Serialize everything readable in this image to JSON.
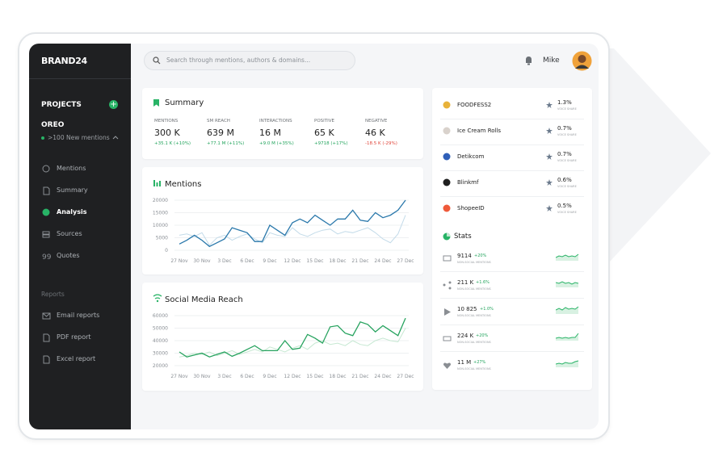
{
  "sidebar": {
    "brand": "BRAND24",
    "section": "PROJECTS",
    "project": "OREO",
    "project_note": ">100 New mentions",
    "menu": [
      "Mentions",
      "Summary",
      "Analysis",
      "Sources",
      "Quotes"
    ],
    "reports_heading": "Reports",
    "reports": [
      "Email reports",
      "PDF report",
      "Excel report"
    ]
  },
  "search_placeholder": "Search through mentions, authors & domains...",
  "user": "Mike",
  "summary": {
    "title": "Summary",
    "metrics": [
      {
        "label": "MENTIONS",
        "value": "300 K",
        "change": "+35.1 K (+10%)",
        "color": "#23a45d"
      },
      {
        "label": "SM REACH",
        "value": "639 M",
        "change": "+77.1 M (+11%)",
        "color": "#23a45d"
      },
      {
        "label": "INTERACTIONS",
        "value": "16 M",
        "change": "+9.0 M (+35%)",
        "color": "#23a45d"
      },
      {
        "label": "POSITIVE",
        "value": "65 K",
        "change": "+9718 (+17%)",
        "color": "#23a45d"
      },
      {
        "label": "NEGATIVE",
        "value": "46 K",
        "change": "-18.5 K (-29%)",
        "color": "#e0453a"
      }
    ]
  },
  "chart_data": [
    {
      "type": "line",
      "title": "Mentions",
      "categories": [
        "27 Nov",
        null,
        null,
        "30 Nov",
        null,
        null,
        "3 Dec",
        null,
        null,
        "6 Dec",
        null,
        null,
        "9 Dec",
        null,
        null,
        "12 Dec",
        null,
        null,
        "15 Dec",
        null,
        null,
        "18 Dec",
        null,
        null,
        "21 Dec",
        null,
        null,
        "24 Dec",
        null,
        null,
        "27 Dec"
      ],
      "series": [
        {
          "color": "#c3dbe9",
          "values": [
            6000,
            6500,
            5500,
            7000,
            2000,
            5000,
            6000,
            4000,
            5500,
            6500,
            4500,
            3000,
            7000,
            6000,
            5500,
            9000,
            6500,
            5500,
            7000,
            8000,
            8500,
            6500,
            7500,
            7000,
            8000,
            9000,
            7000,
            4500,
            3000,
            6500,
            14000
          ]
        },
        {
          "color": "#2a78ab",
          "values": [
            2500,
            4000,
            6000,
            4000,
            1500,
            3000,
            4500,
            9000,
            8000,
            7000,
            3500,
            3500,
            10000,
            8000,
            6000,
            11000,
            12500,
            11000,
            14000,
            12000,
            10000,
            12500,
            12500,
            16000,
            12000,
            11500,
            15000,
            13000,
            14000,
            16000,
            20000
          ]
        }
      ],
      "ylim": [
        0,
        20000
      ],
      "yticks": [
        0,
        5000,
        10000,
        15000,
        20000
      ],
      "grid": true
    },
    {
      "type": "line",
      "title": "Social Media Reach",
      "categories": [
        "27 Nov",
        null,
        null,
        "30 Nov",
        null,
        null,
        "3 Dec",
        null,
        null,
        "6 Dec",
        null,
        null,
        "9 Dec",
        null,
        null,
        "12 Dec",
        null,
        null,
        "15 Dec",
        null,
        null,
        "18 Dec",
        null,
        null,
        "21 Dec",
        null,
        null,
        "24 Dec",
        null,
        null,
        "27 Dec"
      ],
      "series": [
        {
          "color": "#c6e8d2",
          "values": [
            27000,
            28000,
            30000,
            29000,
            31000,
            28000,
            30000,
            32000,
            29000,
            31000,
            33000,
            31000,
            35000,
            33000,
            31000,
            34000,
            36000,
            33000,
            38000,
            40000,
            37000,
            38000,
            36000,
            40000,
            37000,
            36000,
            40000,
            42000,
            40000,
            39000,
            50000
          ]
        },
        {
          "color": "#27a35f",
          "values": [
            31000,
            27000,
            28500,
            30000,
            27000,
            29000,
            31000,
            27500,
            30000,
            33000,
            36000,
            32000,
            32000,
            32000,
            40000,
            33000,
            34000,
            45000,
            42000,
            38000,
            51000,
            52000,
            46000,
            44000,
            55000,
            53000,
            47000,
            52000,
            48000,
            44000,
            58000
          ]
        }
      ],
      "ylim": [
        20000,
        60000
      ],
      "yticks": [
        20000,
        30000,
        40000,
        50000,
        60000
      ],
      "grid": true
    }
  ],
  "sources": [
    {
      "name": "FOODFESS2",
      "share": "1.3%",
      "note": "VOICE SHARE"
    },
    {
      "name": "Ice Cream Rolls",
      "share": "0.7%",
      "note": "VOICE SHARE"
    },
    {
      "name": "Detikcom",
      "share": "0.7%",
      "note": "VOICE SHARE"
    },
    {
      "name": "Blinkmf",
      "share": "0.6%",
      "note": "VOICE SHARE"
    },
    {
      "name": "ShopeeID",
      "share": "0.5%",
      "note": "VOICE SHARE"
    }
  ],
  "stats": {
    "title": "Stats",
    "rows": [
      {
        "value": "9114",
        "change": "+20%",
        "note": "NON-SOCIAL MENTIONS"
      },
      {
        "value": "211 K",
        "change": "+1.6%",
        "note": "NON-SOCIAL MENTIONS"
      },
      {
        "value": "10 825",
        "change": "+1.0%",
        "note": "NON-SOCIAL MENTIONS"
      },
      {
        "value": "224 K",
        "change": "+20%",
        "note": "NON-SOCIAL MENTIONS"
      },
      {
        "value": "11 M",
        "change": "+27%",
        "note": "NON-SOCIAL MENTIONS"
      }
    ]
  }
}
